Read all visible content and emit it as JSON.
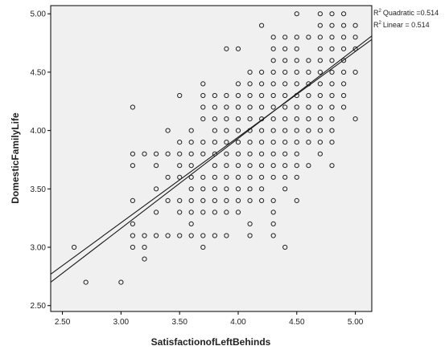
{
  "chart_data": {
    "type": "scatter",
    "xlabel": "SatisfactionofLeftBehinds",
    "ylabel": "DomesticFamilyLife",
    "xlim": [
      2.4,
      5.14
    ],
    "ylim": [
      2.45,
      5.07
    ],
    "x_ticks": [
      "2.50",
      "3.00",
      "3.50",
      "4.00",
      "4.50",
      "5.00"
    ],
    "y_ticks": [
      "2.50",
      "3.00",
      "3.50",
      "4.00",
      "4.50",
      "5.00"
    ],
    "grid": false,
    "background": "#f0f0f0",
    "fit_lines": [
      {
        "name": "Quadratic",
        "r2_label": "Quadratic =0.514",
        "at_x_min": 2.77,
        "at_x_max": 4.78
      },
      {
        "name": "Linear",
        "r2_label": "Linear = 0.514",
        "at_x_min": 2.7,
        "at_x_max": 4.81
      }
    ],
    "points": [
      [
        2.6,
        3.0
      ],
      [
        2.7,
        2.7
      ],
      [
        3.0,
        2.7
      ],
      [
        3.1,
        4.2
      ],
      [
        3.1,
        3.8
      ],
      [
        3.1,
        3.7
      ],
      [
        3.1,
        3.4
      ],
      [
        3.1,
        3.2
      ],
      [
        3.1,
        3.1
      ],
      [
        3.1,
        3.0
      ],
      [
        3.2,
        3.8
      ],
      [
        3.2,
        3.1
      ],
      [
        3.2,
        3.0
      ],
      [
        3.2,
        2.9
      ],
      [
        3.3,
        3.8
      ],
      [
        3.3,
        3.7
      ],
      [
        3.3,
        3.5
      ],
      [
        3.3,
        3.3
      ],
      [
        3.3,
        3.1
      ],
      [
        3.4,
        4.0
      ],
      [
        3.4,
        3.8
      ],
      [
        3.4,
        3.6
      ],
      [
        3.4,
        3.4
      ],
      [
        3.4,
        3.1
      ],
      [
        3.5,
        4.3
      ],
      [
        3.5,
        3.9
      ],
      [
        3.5,
        3.8
      ],
      [
        3.5,
        3.7
      ],
      [
        3.5,
        3.6
      ],
      [
        3.5,
        3.4
      ],
      [
        3.5,
        3.3
      ],
      [
        3.5,
        3.1
      ],
      [
        3.6,
        4.0
      ],
      [
        3.6,
        3.9
      ],
      [
        3.6,
        3.8
      ],
      [
        3.6,
        3.7
      ],
      [
        3.6,
        3.6
      ],
      [
        3.6,
        3.5
      ],
      [
        3.6,
        3.4
      ],
      [
        3.6,
        3.3
      ],
      [
        3.6,
        3.2
      ],
      [
        3.6,
        3.1
      ],
      [
        3.7,
        4.4
      ],
      [
        3.7,
        4.3
      ],
      [
        3.7,
        4.2
      ],
      [
        3.7,
        4.1
      ],
      [
        3.7,
        3.9
      ],
      [
        3.7,
        3.8
      ],
      [
        3.7,
        3.6
      ],
      [
        3.7,
        3.5
      ],
      [
        3.7,
        3.4
      ],
      [
        3.7,
        3.3
      ],
      [
        3.7,
        3.1
      ],
      [
        3.7,
        3.0
      ],
      [
        3.8,
        4.3
      ],
      [
        3.8,
        4.2
      ],
      [
        3.8,
        4.1
      ],
      [
        3.8,
        4.0
      ],
      [
        3.8,
        3.9
      ],
      [
        3.8,
        3.8
      ],
      [
        3.8,
        3.7
      ],
      [
        3.8,
        3.6
      ],
      [
        3.8,
        3.5
      ],
      [
        3.8,
        3.4
      ],
      [
        3.8,
        3.3
      ],
      [
        3.8,
        3.1
      ],
      [
        3.9,
        4.7
      ],
      [
        3.9,
        4.3
      ],
      [
        3.9,
        4.2
      ],
      [
        3.9,
        4.1
      ],
      [
        3.9,
        4.0
      ],
      [
        3.9,
        3.9
      ],
      [
        3.9,
        3.8
      ],
      [
        3.9,
        3.7
      ],
      [
        3.9,
        3.6
      ],
      [
        3.9,
        3.5
      ],
      [
        3.9,
        3.4
      ],
      [
        3.9,
        3.3
      ],
      [
        3.9,
        3.1
      ],
      [
        4.0,
        4.7
      ],
      [
        4.0,
        4.4
      ],
      [
        4.0,
        4.3
      ],
      [
        4.0,
        4.2
      ],
      [
        4.0,
        4.1
      ],
      [
        4.0,
        4.0
      ],
      [
        4.0,
        3.9
      ],
      [
        4.0,
        3.8
      ],
      [
        4.0,
        3.7
      ],
      [
        4.0,
        3.6
      ],
      [
        4.0,
        3.5
      ],
      [
        4.0,
        3.4
      ],
      [
        4.0,
        3.3
      ],
      [
        4.1,
        4.5
      ],
      [
        4.1,
        4.4
      ],
      [
        4.1,
        4.3
      ],
      [
        4.1,
        4.2
      ],
      [
        4.1,
        4.1
      ],
      [
        4.1,
        4.0
      ],
      [
        4.1,
        3.9
      ],
      [
        4.1,
        3.8
      ],
      [
        4.1,
        3.7
      ],
      [
        4.1,
        3.6
      ],
      [
        4.1,
        3.5
      ],
      [
        4.1,
        3.4
      ],
      [
        4.1,
        3.2
      ],
      [
        4.1,
        3.1
      ],
      [
        4.2,
        4.9
      ],
      [
        4.2,
        4.5
      ],
      [
        4.2,
        4.4
      ],
      [
        4.2,
        4.3
      ],
      [
        4.2,
        4.2
      ],
      [
        4.2,
        4.1
      ],
      [
        4.2,
        4.0
      ],
      [
        4.2,
        3.9
      ],
      [
        4.2,
        3.8
      ],
      [
        4.2,
        3.7
      ],
      [
        4.2,
        3.6
      ],
      [
        4.2,
        3.5
      ],
      [
        4.2,
        3.4
      ],
      [
        4.3,
        4.8
      ],
      [
        4.3,
        4.7
      ],
      [
        4.3,
        4.6
      ],
      [
        4.3,
        4.5
      ],
      [
        4.3,
        4.4
      ],
      [
        4.3,
        4.3
      ],
      [
        4.3,
        4.2
      ],
      [
        4.3,
        4.1
      ],
      [
        4.3,
        4.0
      ],
      [
        4.3,
        3.9
      ],
      [
        4.3,
        3.8
      ],
      [
        4.3,
        3.7
      ],
      [
        4.3,
        3.6
      ],
      [
        4.3,
        3.4
      ],
      [
        4.3,
        3.3
      ],
      [
        4.3,
        3.2
      ],
      [
        4.3,
        3.1
      ],
      [
        4.4,
        4.8
      ],
      [
        4.4,
        4.7
      ],
      [
        4.4,
        4.6
      ],
      [
        4.4,
        4.5
      ],
      [
        4.4,
        4.4
      ],
      [
        4.4,
        4.3
      ],
      [
        4.4,
        4.2
      ],
      [
        4.4,
        4.1
      ],
      [
        4.4,
        4.0
      ],
      [
        4.4,
        3.9
      ],
      [
        4.4,
        3.8
      ],
      [
        4.4,
        3.7
      ],
      [
        4.4,
        3.6
      ],
      [
        4.4,
        3.5
      ],
      [
        4.4,
        3.0
      ],
      [
        4.5,
        5.0
      ],
      [
        4.5,
        4.8
      ],
      [
        4.5,
        4.7
      ],
      [
        4.5,
        4.6
      ],
      [
        4.5,
        4.5
      ],
      [
        4.5,
        4.4
      ],
      [
        4.5,
        4.3
      ],
      [
        4.5,
        4.2
      ],
      [
        4.5,
        4.1
      ],
      [
        4.5,
        4.0
      ],
      [
        4.5,
        3.9
      ],
      [
        4.5,
        3.8
      ],
      [
        4.5,
        3.7
      ],
      [
        4.5,
        3.6
      ],
      [
        4.5,
        3.4
      ],
      [
        4.6,
        4.8
      ],
      [
        4.6,
        4.6
      ],
      [
        4.6,
        4.5
      ],
      [
        4.6,
        4.4
      ],
      [
        4.6,
        4.3
      ],
      [
        4.6,
        4.2
      ],
      [
        4.6,
        4.1
      ],
      [
        4.6,
        4.0
      ],
      [
        4.6,
        3.9
      ],
      [
        4.6,
        3.7
      ],
      [
        4.7,
        5.0
      ],
      [
        4.7,
        4.9
      ],
      [
        4.7,
        4.8
      ],
      [
        4.7,
        4.7
      ],
      [
        4.7,
        4.6
      ],
      [
        4.7,
        4.5
      ],
      [
        4.7,
        4.4
      ],
      [
        4.7,
        4.3
      ],
      [
        4.7,
        4.2
      ],
      [
        4.7,
        4.1
      ],
      [
        4.7,
        4.0
      ],
      [
        4.7,
        3.9
      ],
      [
        4.7,
        3.8
      ],
      [
        4.8,
        5.0
      ],
      [
        4.8,
        4.9
      ],
      [
        4.8,
        4.8
      ],
      [
        4.8,
        4.7
      ],
      [
        4.8,
        4.6
      ],
      [
        4.8,
        4.5
      ],
      [
        4.8,
        4.4
      ],
      [
        4.8,
        4.3
      ],
      [
        4.8,
        4.2
      ],
      [
        4.8,
        4.1
      ],
      [
        4.8,
        4.0
      ],
      [
        4.8,
        3.9
      ],
      [
        4.8,
        3.7
      ],
      [
        4.9,
        5.0
      ],
      [
        4.9,
        4.9
      ],
      [
        4.9,
        4.8
      ],
      [
        4.9,
        4.7
      ],
      [
        4.9,
        4.6
      ],
      [
        4.9,
        4.5
      ],
      [
        4.9,
        4.4
      ],
      [
        4.9,
        4.3
      ],
      [
        4.9,
        4.2
      ],
      [
        5.0,
        4.9
      ],
      [
        5.0,
        4.8
      ],
      [
        5.0,
        4.7
      ],
      [
        5.0,
        4.5
      ],
      [
        5.0,
        4.1
      ]
    ]
  }
}
